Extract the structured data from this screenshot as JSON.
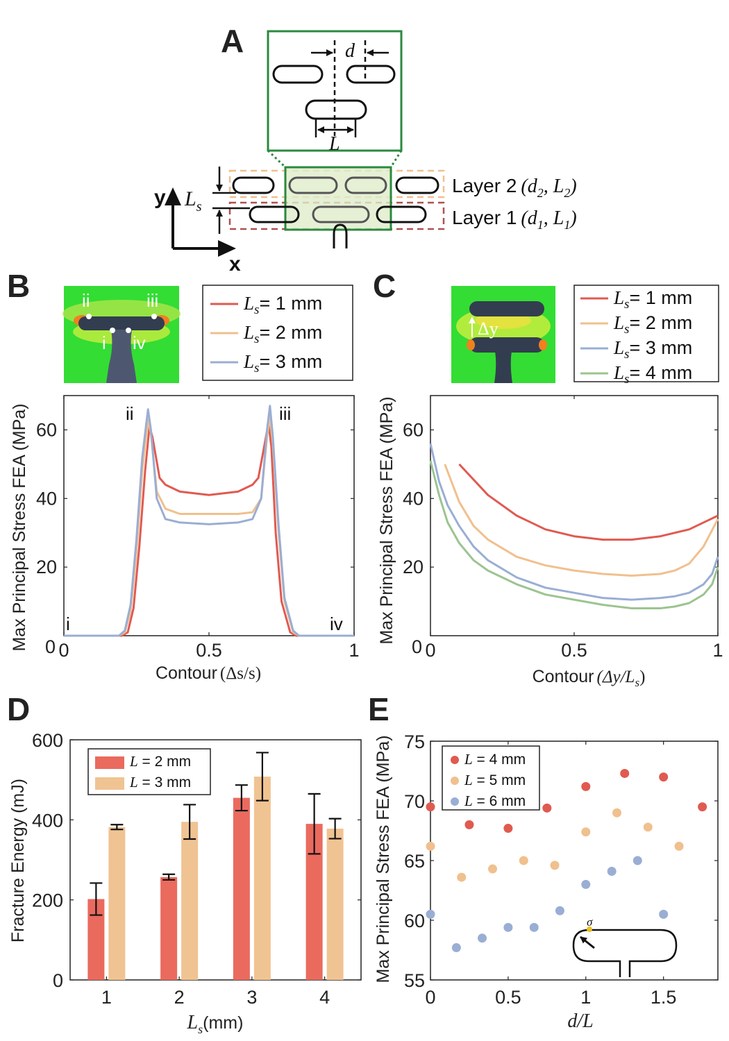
{
  "panels": {
    "a": "A",
    "b": "B",
    "c": "C",
    "d": "D",
    "e": "E"
  },
  "colors": {
    "red": "#e05a50",
    "orange": "#f0c08e",
    "blue": "#9aaed4",
    "green": "#9cc490",
    "panel_green": "#2a8a3e",
    "bar_red": "#ea6a5e",
    "bar_orange": "#f0c392",
    "contour_green": "#33dd33"
  },
  "panel_a": {
    "d_label": "d",
    "L_label": "L",
    "Ls_main": "L",
    "Ls_sub": "s",
    "layer2_text": "Layer 2",
    "layer2_params": "(d",
    "layer2_d_sub": "2",
    "layer2_mid": ", L",
    "layer2_L_sub": "2",
    "layer2_close": ")",
    "layer1_text": "Layer 1",
    "layer1_params": "(d",
    "layer1_d_sub": "1",
    "layer1_mid": ", L",
    "layer1_L_sub": "1",
    "layer1_close": ")",
    "x_axis": "x",
    "y_axis": "y"
  },
  "panel_b": {
    "inset_labels": [
      "ii",
      "iii",
      "i",
      "iv"
    ],
    "peak_labels": [
      "ii",
      "iii"
    ],
    "corner_labels": [
      "i",
      "iv"
    ]
  },
  "panel_c": {
    "inset_label": "Δy"
  },
  "chart_data": [
    {
      "id": "B",
      "type": "line",
      "title": "",
      "xlabel": "Contour",
      "xlabel_math": "(Δs/s)",
      "ylabel": "Max Principal Stress FEA (MPa)",
      "xlim": [
        0,
        1
      ],
      "ylim": [
        0,
        70
      ],
      "xticks": [
        0,
        0.5,
        1
      ],
      "xtick_labels": [
        "0",
        "0.5",
        "1"
      ],
      "yticks": [
        20,
        40,
        60
      ],
      "ytick_labels": [
        "20",
        "40",
        "60"
      ],
      "legend": [
        {
          "pre": "L",
          "sub": "s",
          "post": "= 1 mm"
        },
        {
          "pre": "L",
          "sub": "s",
          "post": "= 2 mm"
        },
        {
          "pre": "L",
          "sub": "s",
          "post": "= 3 mm"
        }
      ],
      "series": [
        {
          "name": "Ls = 1 mm",
          "color": "#e05a50",
          "x": [
            0,
            0.2,
            0.22,
            0.24,
            0.26,
            0.28,
            0.295,
            0.305,
            0.33,
            0.35,
            0.4,
            0.5,
            0.6,
            0.65,
            0.67,
            0.69,
            0.705,
            0.715,
            0.73,
            0.75,
            0.78,
            0.8,
            1
          ],
          "y": [
            0,
            0,
            1,
            8,
            26,
            48,
            61,
            58,
            46,
            44,
            42,
            41,
            42,
            44,
            46,
            55,
            62,
            55,
            30,
            10,
            1,
            0,
            0
          ]
        },
        {
          "name": "Ls = 2 mm",
          "color": "#f0c08e",
          "x": [
            0,
            0.19,
            0.21,
            0.23,
            0.25,
            0.27,
            0.29,
            0.3,
            0.32,
            0.35,
            0.4,
            0.5,
            0.6,
            0.65,
            0.68,
            0.7,
            0.71,
            0.72,
            0.74,
            0.76,
            0.79,
            0.81,
            1
          ],
          "y": [
            0,
            0,
            1,
            7,
            24,
            48,
            63,
            59,
            42,
            37,
            35.5,
            35.5,
            35.5,
            36,
            40,
            58,
            64,
            56,
            30,
            10,
            1,
            0,
            0
          ]
        },
        {
          "name": "Ls = 3 mm",
          "color": "#9aaed4",
          "x": [
            0,
            0.19,
            0.21,
            0.23,
            0.25,
            0.27,
            0.29,
            0.3,
            0.32,
            0.35,
            0.4,
            0.5,
            0.6,
            0.65,
            0.68,
            0.7,
            0.71,
            0.72,
            0.74,
            0.76,
            0.79,
            0.81,
            1
          ],
          "y": [
            0,
            0,
            1.5,
            9,
            28,
            52,
            66,
            60,
            40,
            34,
            33,
            32.5,
            33,
            34,
            40,
            60,
            67,
            58,
            32,
            11,
            1.5,
            0,
            0
          ]
        }
      ]
    },
    {
      "id": "C",
      "type": "line",
      "title": "",
      "xlabel": "Contour",
      "xlabel_math": "(Δy/L",
      "ylabel": "Max Principal Stress FEA (MPa)",
      "xlim": [
        0,
        1
      ],
      "ylim": [
        0,
        70
      ],
      "xticks": [
        0,
        0.5,
        1
      ],
      "xtick_labels": [
        "0",
        "0.5",
        "1"
      ],
      "yticks": [
        20,
        40,
        60
      ],
      "ytick_labels": [
        "20",
        "40",
        "60"
      ],
      "legend": [
        {
          "pre": "L",
          "sub": "s",
          "post": "= 1 mm"
        },
        {
          "pre": "L",
          "sub": "s",
          "post": "= 2 mm"
        },
        {
          "pre": "L",
          "sub": "s",
          "post": "= 3 mm"
        },
        {
          "pre": "L",
          "sub": "s",
          "post": "= 4 mm"
        }
      ],
      "series": [
        {
          "name": "Ls = 1 mm",
          "color": "#e05a50",
          "x": [
            0.1,
            0.2,
            0.3,
            0.4,
            0.5,
            0.6,
            0.7,
            0.8,
            0.9,
            1.0
          ],
          "y": [
            50,
            41,
            35,
            31,
            29,
            28,
            28,
            29,
            31,
            35
          ]
        },
        {
          "name": "Ls = 2 mm",
          "color": "#f0c08e",
          "x": [
            0.05,
            0.1,
            0.15,
            0.2,
            0.3,
            0.4,
            0.5,
            0.6,
            0.7,
            0.8,
            0.85,
            0.9,
            0.95,
            1.0
          ],
          "y": [
            50,
            39,
            32,
            28,
            23,
            20.5,
            19,
            18,
            17.5,
            18,
            19,
            21,
            26,
            34
          ]
        },
        {
          "name": "Ls = 3 mm",
          "color": "#9aaed4",
          "x": [
            0.0,
            0.03,
            0.06,
            0.1,
            0.15,
            0.2,
            0.3,
            0.4,
            0.5,
            0.6,
            0.7,
            0.8,
            0.85,
            0.9,
            0.95,
            0.98,
            1.0
          ],
          "y": [
            56,
            45,
            38,
            32,
            26,
            22,
            17,
            14,
            12.5,
            11,
            10.5,
            11,
            11.5,
            12.5,
            15,
            18,
            23
          ]
        },
        {
          "name": "Ls = 4 mm",
          "color": "#9cc490",
          "x": [
            0.0,
            0.03,
            0.06,
            0.1,
            0.15,
            0.2,
            0.3,
            0.4,
            0.5,
            0.6,
            0.7,
            0.8,
            0.85,
            0.9,
            0.95,
            0.98,
            1.0
          ],
          "y": [
            51,
            41,
            33,
            27,
            22,
            19,
            15,
            12,
            10.5,
            9,
            8,
            8,
            8.5,
            9.5,
            12,
            15,
            20
          ]
        }
      ]
    },
    {
      "id": "D",
      "type": "bar",
      "title": "",
      "xlabel_math": "L",
      "xlabel_sub": "s",
      "xlabel_unit": "(mm)",
      "ylabel": "Fracture Energy (mJ)",
      "categories": [
        "1",
        "2",
        "3",
        "4"
      ],
      "ylim": [
        0,
        600
      ],
      "yticks": [
        0,
        200,
        400,
        600
      ],
      "ytick_labels": [
        "0",
        "200",
        "400",
        "600"
      ],
      "legend": [
        {
          "pre": "L",
          "post": " = 2 mm"
        },
        {
          "pre": "L",
          "post": " = 3 mm"
        }
      ],
      "series": [
        {
          "name": "L = 2 mm",
          "color": "#ea6a5e",
          "values": [
            202,
            257,
            455,
            390
          ],
          "errors": [
            40,
            7,
            32,
            75
          ]
        },
        {
          "name": "L = 3 mm",
          "color": "#f0c392",
          "values": [
            382,
            395,
            508,
            378
          ],
          "errors": [
            6,
            43,
            60,
            25
          ]
        }
      ]
    },
    {
      "id": "E",
      "type": "scatter",
      "title": "",
      "xlabel": "d/L",
      "ylabel": "Max Principal Stress FEA (MPa)",
      "xlim": [
        0,
        1.85
      ],
      "ylim": [
        55,
        75
      ],
      "xticks": [
        0,
        0.5,
        1,
        1.5
      ],
      "xtick_labels": [
        "0",
        "0.5",
        "1",
        "1.5"
      ],
      "yticks": [
        55,
        60,
        65,
        70,
        75
      ],
      "ytick_labels": [
        "55",
        "60",
        "65",
        "70",
        "75"
      ],
      "legend": [
        {
          "pre": "L",
          "post": " = 4 mm"
        },
        {
          "pre": "L",
          "post": " = 5 mm"
        },
        {
          "pre": "L",
          "post": " = 6 mm"
        }
      ],
      "inset_label": "σ",
      "series": [
        {
          "name": "L = 4 mm",
          "color": "#e05a50",
          "x": [
            0,
            0.25,
            0.5,
            0.75,
            1.0,
            1.25,
            1.5,
            1.75
          ],
          "y": [
            69.5,
            68,
            67.7,
            69.4,
            71.2,
            72.3,
            72,
            69.5
          ]
        },
        {
          "name": "L = 5 mm",
          "color": "#f0c08e",
          "x": [
            0,
            0.2,
            0.4,
            0.6,
            0.8,
            1.0,
            1.2,
            1.4,
            1.6
          ],
          "y": [
            66.2,
            63.6,
            64.3,
            65,
            64.6,
            67.4,
            69,
            67.8,
            66.2
          ]
        },
        {
          "name": "L = 6 mm",
          "color": "#9aaed4",
          "x": [
            0,
            0.167,
            0.333,
            0.5,
            0.667,
            0.833,
            1.0,
            1.167,
            1.333,
            1.5
          ],
          "y": [
            60.5,
            57.7,
            58.5,
            59.4,
            59.4,
            60.8,
            63,
            64.1,
            65,
            60.5
          ]
        }
      ]
    }
  ]
}
